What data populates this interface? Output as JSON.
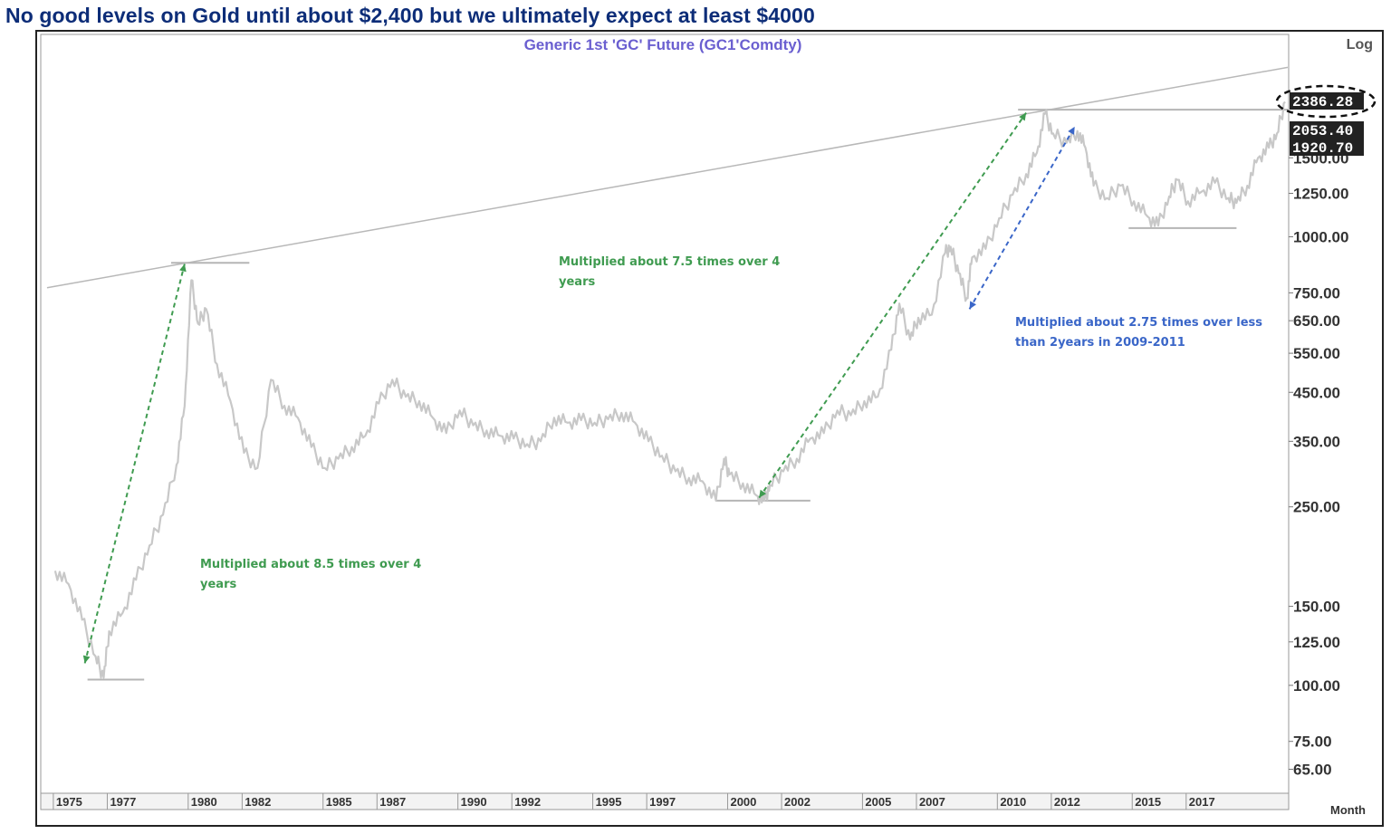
{
  "headline": "No good levels on Gold until about $2,400 but we ultimately expect at least $4000",
  "chart_data": {
    "type": "line",
    "subtitle": "Generic  1st  'GC'  Future  (GC1'Comdty)",
    "scale_label": "Log",
    "x_axis_label": "Month",
    "x_ticks": [
      "1975",
      "1977",
      "1980",
      "1982",
      "1985",
      "1987",
      "1990",
      "1992",
      "1995",
      "1997",
      "2000",
      "2002",
      "2005",
      "2007",
      "2010",
      "2012",
      "2015",
      "2017"
    ],
    "y_ticks": [
      "1500.00",
      "1250.00",
      "1000.00",
      "750.00",
      "650.00",
      "550.00",
      "450.00",
      "350.00",
      "250.00",
      "150.00",
      "125.00",
      "100.00",
      "75.00",
      "65.00"
    ],
    "highlighted_prices": [
      {
        "label": "2386.28",
        "value": 2386.28,
        "emphasis": "dashed-ellipse"
      },
      {
        "label": "2053.40",
        "value": 2053.4
      },
      {
        "label": "1920.70",
        "value": 1920.7
      }
    ],
    "xlim": [
      1974.5,
      2020.7
    ],
    "ylim": [
      58,
      2800
    ],
    "y_scale": "log",
    "series": [
      {
        "color": "#c8c8c8",
        "points": [
          [
            1975.0,
            180
          ],
          [
            1975.5,
            168
          ],
          [
            1976.0,
            140
          ],
          [
            1976.5,
            116
          ],
          [
            1976.8,
            104
          ],
          [
            1977.0,
            132
          ],
          [
            1977.5,
            145
          ],
          [
            1978.0,
            172
          ],
          [
            1978.5,
            205
          ],
          [
            1979.0,
            240
          ],
          [
            1979.5,
            310
          ],
          [
            1979.8,
            420
          ],
          [
            1980.05,
            800
          ],
          [
            1980.3,
            640
          ],
          [
            1980.6,
            690
          ],
          [
            1981.0,
            520
          ],
          [
            1981.5,
            430
          ],
          [
            1982.0,
            330
          ],
          [
            1982.5,
            305
          ],
          [
            1983.0,
            480
          ],
          [
            1983.5,
            420
          ],
          [
            1984.0,
            395
          ],
          [
            1984.5,
            340
          ],
          [
            1985.0,
            305
          ],
          [
            1985.5,
            320
          ],
          [
            1986.0,
            340
          ],
          [
            1986.5,
            360
          ],
          [
            1987.0,
            425
          ],
          [
            1987.5,
            480
          ],
          [
            1988.0,
            440
          ],
          [
            1988.5,
            430
          ],
          [
            1989.0,
            395
          ],
          [
            1989.5,
            365
          ],
          [
            1990.0,
            410
          ],
          [
            1990.5,
            380
          ],
          [
            1991.0,
            370
          ],
          [
            1991.5,
            360
          ],
          [
            1992.0,
            355
          ],
          [
            1992.5,
            345
          ],
          [
            1993.0,
            350
          ],
          [
            1993.5,
            395
          ],
          [
            1994.0,
            385
          ],
          [
            1994.5,
            390
          ],
          [
            1995.0,
            385
          ],
          [
            1995.5,
            392
          ],
          [
            1996.0,
            405
          ],
          [
            1996.5,
            385
          ],
          [
            1997.0,
            350
          ],
          [
            1997.5,
            325
          ],
          [
            1998.0,
            300
          ],
          [
            1998.5,
            290
          ],
          [
            1999.0,
            285
          ],
          [
            1999.5,
            258
          ],
          [
            1999.8,
            320
          ],
          [
            2000.0,
            295
          ],
          [
            2000.5,
            282
          ],
          [
            2001.0,
            265
          ],
          [
            2001.3,
            258
          ],
          [
            2001.5,
            280
          ],
          [
            2002.0,
            300
          ],
          [
            2002.5,
            320
          ],
          [
            2003.0,
            355
          ],
          [
            2003.5,
            365
          ],
          [
            2004.0,
            410
          ],
          [
            2004.5,
            400
          ],
          [
            2005.0,
            430
          ],
          [
            2005.5,
            440
          ],
          [
            2006.0,
            560
          ],
          [
            2006.3,
            710
          ],
          [
            2006.7,
            590
          ],
          [
            2007.0,
            660
          ],
          [
            2007.5,
            670
          ],
          [
            2008.0,
            920
          ],
          [
            2008.2,
            950
          ],
          [
            2008.5,
            830
          ],
          [
            2008.8,
            730
          ],
          [
            2009.0,
            900
          ],
          [
            2009.5,
            940
          ],
          [
            2010.0,
            1100
          ],
          [
            2010.5,
            1240
          ],
          [
            2011.0,
            1380
          ],
          [
            2011.4,
            1540
          ],
          [
            2011.7,
            1880
          ],
          [
            2012.0,
            1700
          ],
          [
            2012.5,
            1620
          ],
          [
            2012.9,
            1720
          ],
          [
            2013.2,
            1580
          ],
          [
            2013.5,
            1300
          ],
          [
            2014.0,
            1220
          ],
          [
            2014.5,
            1300
          ],
          [
            2015.0,
            1200
          ],
          [
            2015.5,
            1110
          ],
          [
            2015.9,
            1060
          ],
          [
            2016.3,
            1230
          ],
          [
            2016.6,
            1340
          ],
          [
            2017.0,
            1200
          ],
          [
            2017.5,
            1260
          ],
          [
            2018.0,
            1320
          ],
          [
            2018.5,
            1220
          ],
          [
            2018.8,
            1190
          ],
          [
            2019.2,
            1300
          ],
          [
            2019.6,
            1500
          ],
          [
            2020.0,
            1580
          ],
          [
            2020.3,
            1700
          ],
          [
            2020.6,
            2000
          ]
        ]
      }
    ],
    "annotations": [
      {
        "text_lines": [
          "Multiplied about 8.5 times over 4",
          "years"
        ],
        "color": "#3f9b50"
      },
      {
        "text_lines": [
          "Multiplied about 7.5 times over 4",
          "years"
        ],
        "color": "#3f9b50"
      },
      {
        "text_lines": [
          "Multiplied about 2.75  times over less",
          "than 2years in 2009-2011"
        ],
        "color": "#3a66c8"
      }
    ],
    "arrows": [
      {
        "from": [
          1976.1,
          112
        ],
        "to": [
          1979.8,
          870
        ],
        "color": "#3f9b50",
        "style": "dashed-double"
      },
      {
        "from": [
          2001.1,
          262
        ],
        "to": [
          2011.0,
          1890
        ],
        "color": "#3f9b50",
        "style": "dashed-double"
      },
      {
        "from": [
          2008.9,
          690
        ],
        "to": [
          2012.8,
          1760
        ],
        "color": "#3a66c8",
        "style": "dashed-double"
      }
    ],
    "horizontal_levels": [
      {
        "value": 103,
        "x_range": [
          1976.2,
          1978.3
        ]
      },
      {
        "value": 875,
        "x_range": [
          1979.3,
          1982.2
        ]
      },
      {
        "value": 258,
        "x_range": [
          1999.5,
          2003.0
        ]
      },
      {
        "value": 1046,
        "x_range": [
          2014.8,
          2018.8
        ]
      },
      {
        "value": 1920.7,
        "x_range": [
          2010.7,
          2020.7
        ]
      }
    ],
    "trendlines": [
      {
        "from": [
          1974.7,
          770
        ],
        "to": [
          2020.7,
          2386.28
        ]
      }
    ]
  }
}
